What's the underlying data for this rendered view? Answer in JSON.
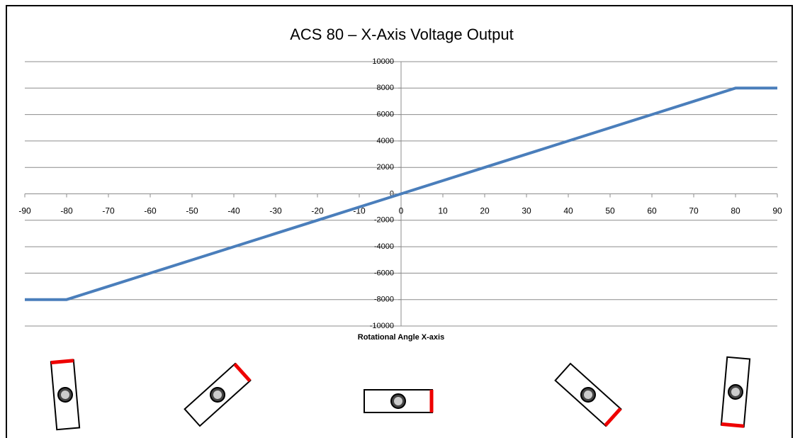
{
  "chart_data": {
    "type": "line",
    "title": "ACS 80 – X-Axis Voltage Output",
    "x_label": "Rotational Angle X-axis",
    "x": [
      -90,
      -80,
      -70,
      -60,
      -50,
      -40,
      -30,
      -20,
      -10,
      0,
      10,
      20,
      30,
      40,
      50,
      60,
      70,
      80,
      90
    ],
    "values": [
      -8000,
      -8000,
      -7000,
      -6000,
      -5000,
      -4000,
      -3000,
      -2000,
      -1000,
      0,
      1000,
      2000,
      3000,
      4000,
      5000,
      6000,
      7000,
      8000,
      8000
    ],
    "color": "#4a7ebb",
    "xlim": [
      -90,
      90
    ],
    "xticks": [
      -90,
      -80,
      -70,
      -60,
      -50,
      -40,
      -30,
      -20,
      -10,
      0,
      10,
      20,
      30,
      40,
      50,
      60,
      70,
      80,
      90
    ],
    "ylim": [
      -10000,
      10000
    ],
    "yticks": [
      -10000,
      -8000,
      -6000,
      -4000,
      -2000,
      0,
      2000,
      4000,
      6000,
      8000,
      10000
    ],
    "grid": true
  }
}
